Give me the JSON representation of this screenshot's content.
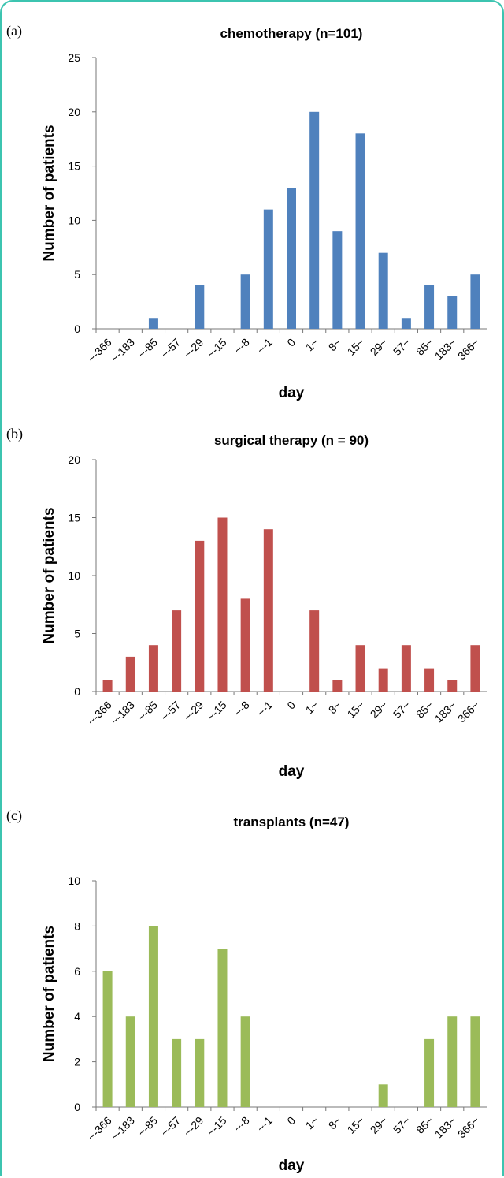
{
  "chart_data": [
    {
      "type": "bar",
      "label": "(a)",
      "title": "chemotherapy (n=101)",
      "xlabel": "day",
      "ylabel": "Number of patients",
      "categories": [
        "~-366",
        "~-183",
        "~-85",
        "~-57",
        "~-29",
        "~-15",
        "~-8",
        "~-1",
        "0",
        "1~",
        "8~",
        "15~",
        "29~",
        "57~",
        "85~",
        "183~",
        "366~"
      ],
      "values": [
        0,
        0,
        1,
        0,
        4,
        0,
        5,
        11,
        13,
        20,
        9,
        18,
        7,
        1,
        4,
        3,
        5
      ],
      "color": "#4f81bd",
      "ylim": [
        0,
        25
      ],
      "yticks": [
        0,
        5,
        10,
        15,
        20,
        25
      ]
    },
    {
      "type": "bar",
      "label": "(b)",
      "title": "surgical therapy (n = 90)",
      "xlabel": "day",
      "ylabel": "Number of patients",
      "categories": [
        "~-366",
        "~-183",
        "~-85",
        "~-57",
        "~-29",
        "~-15",
        "~-8",
        "~-1",
        "0",
        "1~",
        "8~",
        "15~",
        "29~",
        "57~",
        "85~",
        "183~",
        "366~"
      ],
      "values": [
        1,
        3,
        4,
        7,
        13,
        15,
        8,
        14,
        0,
        7,
        1,
        4,
        2,
        4,
        2,
        1,
        4
      ],
      "color": "#c0504d",
      "ylim": [
        0,
        20
      ],
      "yticks": [
        0,
        5,
        10,
        15,
        20
      ]
    },
    {
      "type": "bar",
      "label": "(c)",
      "title": "transplants (n=47)",
      "xlabel": "day",
      "ylabel": "Number of patients",
      "categories": [
        "~-366",
        "~-183",
        "~-85",
        "~-57",
        "~-29",
        "~-15",
        "~-8",
        "~-1",
        "0",
        "1~",
        "8~",
        "15~",
        "29~",
        "57~",
        "85~",
        "183~",
        "366~"
      ],
      "values": [
        6,
        4,
        8,
        3,
        3,
        7,
        4,
        0,
        0,
        0,
        0,
        0,
        1,
        0,
        3,
        4,
        4
      ],
      "color": "#9bbb59",
      "ylim": [
        0,
        10
      ],
      "yticks": [
        0,
        2,
        4,
        6,
        8,
        10
      ]
    }
  ]
}
